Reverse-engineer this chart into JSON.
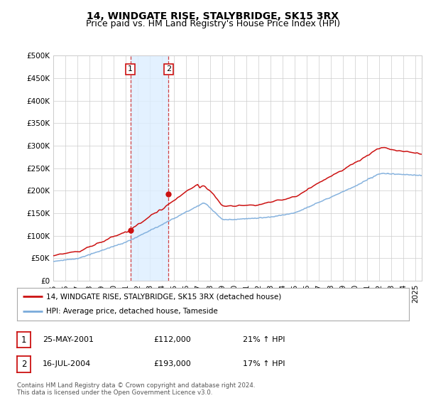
{
  "title": "14, WINDGATE RISE, STALYBRIDGE, SK15 3RX",
  "subtitle": "Price paid vs. HM Land Registry's House Price Index (HPI)",
  "ylabel_ticks": [
    "£0",
    "£50K",
    "£100K",
    "£150K",
    "£200K",
    "£250K",
    "£300K",
    "£350K",
    "£400K",
    "£450K",
    "£500K"
  ],
  "ytick_values": [
    0,
    50000,
    100000,
    150000,
    200000,
    250000,
    300000,
    350000,
    400000,
    450000,
    500000
  ],
  "ylim": [
    0,
    500000
  ],
  "xlim_start": 1995.0,
  "xlim_end": 2025.5,
  "hpi_color": "#7aabdb",
  "price_color": "#cc1111",
  "sale1_date": 2001.38,
  "sale1_price": 112000,
  "sale1_label": "1",
  "sale2_date": 2004.54,
  "sale2_price": 193000,
  "sale2_label": "2",
  "shade1_x1": 2001.38,
  "shade1_x2": 2004.54,
  "legend_line1": "14, WINDGATE RISE, STALYBRIDGE, SK15 3RX (detached house)",
  "legend_line2": "HPI: Average price, detached house, Tameside",
  "table_row1": [
    "1",
    "25-MAY-2001",
    "£112,000",
    "21% ↑ HPI"
  ],
  "table_row2": [
    "2",
    "16-JUL-2004",
    "£193,000",
    "17% ↑ HPI"
  ],
  "footnote": "Contains HM Land Registry data © Crown copyright and database right 2024.\nThis data is licensed under the Open Government Licence v3.0.",
  "title_fontsize": 10,
  "subtitle_fontsize": 9,
  "tick_fontsize": 7.5,
  "background_color": "#ffffff",
  "grid_color": "#cccccc"
}
